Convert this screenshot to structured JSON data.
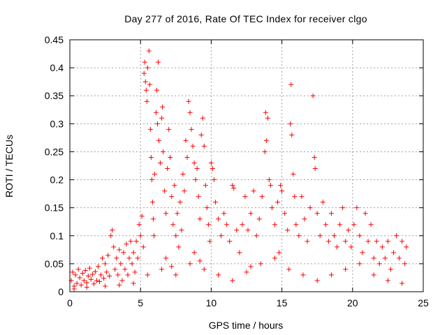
{
  "chart_data": {
    "type": "scatter",
    "title": "Day 277 of 2016, Rate Of TEC Index for receiver clgo",
    "xlabel": "GPS time / hours",
    "ylabel": "ROTI / TECUs",
    "xlim": [
      0,
      25
    ],
    "ylim": [
      0,
      0.45
    ],
    "xticks": [
      0,
      5,
      10,
      15,
      20,
      25
    ],
    "xtick_labels": [
      "0",
      "5",
      "10",
      "15",
      "20",
      "25"
    ],
    "yticks": [
      0,
      0.05,
      0.1,
      0.15,
      0.2,
      0.25,
      0.3,
      0.35,
      0.4,
      0.45
    ],
    "ytick_labels": [
      "0",
      "0.05",
      "0.1",
      "0.15",
      "0.2",
      "0.25",
      "0.3",
      "0.35",
      "0.4",
      "0.45"
    ],
    "grid": true,
    "marker": "+",
    "color": "#ff0000",
    "series": [
      {
        "name": "ROTI",
        "points": [
          [
            0.1,
            0.02
          ],
          [
            0.2,
            0.035
          ],
          [
            0.3,
            0.01
          ],
          [
            0.4,
            0.03
          ],
          [
            0.5,
            0.015
          ],
          [
            0.6,
            0.04
          ],
          [
            0.7,
            0.025
          ],
          [
            0.8,
            0.012
          ],
          [
            0.9,
            0.033
          ],
          [
            1.0,
            0.02
          ],
          [
            1.1,
            0.038
          ],
          [
            1.2,
            0.016
          ],
          [
            1.3,
            0.028
          ],
          [
            1.4,
            0.042
          ],
          [
            1.5,
            0.022
          ],
          [
            1.6,
            0.031
          ],
          [
            1.7,
            0.014
          ],
          [
            1.8,
            0.036
          ],
          [
            1.9,
            0.02
          ],
          [
            2.0,
            0.045
          ],
          [
            2.1,
            0.018
          ],
          [
            2.2,
            0.03
          ],
          [
            2.3,
            0.06
          ],
          [
            2.4,
            0.024
          ],
          [
            2.5,
            0.05
          ],
          [
            2.6,
            0.035
          ],
          [
            2.7,
            0.065
          ],
          [
            2.8,
            0.028
          ],
          [
            2.9,
            0.1
          ],
          [
            3.0,
            0.11
          ],
          [
            3.1,
            0.08
          ],
          [
            3.2,
            0.04
          ],
          [
            3.3,
            0.06
          ],
          [
            3.4,
            0.03
          ],
          [
            3.5,
            0.075
          ],
          [
            3.6,
            0.05
          ],
          [
            3.7,
            0.02
          ],
          [
            3.8,
            0.07
          ],
          [
            3.9,
            0.04
          ],
          [
            4.0,
            0.085
          ],
          [
            4.1,
            0.03
          ],
          [
            4.2,
            0.06
          ],
          [
            4.3,
            0.09
          ],
          [
            4.4,
            0.05
          ],
          [
            4.5,
            0.07
          ],
          [
            4.6,
            0.035
          ],
          [
            4.7,
            0.09
          ],
          [
            4.8,
            0.06
          ],
          [
            4.9,
            0.12
          ],
          [
            5.0,
            0.1
          ],
          [
            5.1,
            0.135
          ],
          [
            5.2,
            0.08
          ],
          [
            5.25,
            0.39
          ],
          [
            5.3,
            0.41
          ],
          [
            5.35,
            0.375
          ],
          [
            5.4,
            0.36
          ],
          [
            5.45,
            0.34
          ],
          [
            5.5,
            0.4
          ],
          [
            5.6,
            0.43
          ],
          [
            5.65,
            0.37
          ],
          [
            5.7,
            0.29
          ],
          [
            5.75,
            0.24
          ],
          [
            5.8,
            0.2
          ],
          [
            5.85,
            0.16
          ],
          [
            5.9,
            0.13
          ],
          [
            5.95,
            0.1
          ],
          [
            6.0,
            0.21
          ],
          [
            6.1,
            0.32
          ],
          [
            6.15,
            0.36
          ],
          [
            6.2,
            0.3
          ],
          [
            6.25,
            0.41
          ],
          [
            6.3,
            0.27
          ],
          [
            6.4,
            0.23
          ],
          [
            6.5,
            0.31
          ],
          [
            6.55,
            0.33
          ],
          [
            6.6,
            0.25
          ],
          [
            6.7,
            0.18
          ],
          [
            6.8,
            0.14
          ],
          [
            6.9,
            0.22
          ],
          [
            7.0,
            0.29
          ],
          [
            7.1,
            0.24
          ],
          [
            7.2,
            0.17
          ],
          [
            7.3,
            0.12
          ],
          [
            7.4,
            0.19
          ],
          [
            7.5,
            0.1
          ],
          [
            7.6,
            0.14
          ],
          [
            7.7,
            0.08
          ],
          [
            7.8,
            0.16
          ],
          [
            7.9,
            0.11
          ],
          [
            8.0,
            0.21
          ],
          [
            8.1,
            0.18
          ],
          [
            8.2,
            0.27
          ],
          [
            8.3,
            0.24
          ],
          [
            8.4,
            0.34
          ],
          [
            8.5,
            0.32
          ],
          [
            8.6,
            0.29
          ],
          [
            8.7,
            0.26
          ],
          [
            8.8,
            0.23
          ],
          [
            8.9,
            0.2
          ],
          [
            9.0,
            0.22
          ],
          [
            9.1,
            0.17
          ],
          [
            9.2,
            0.13
          ],
          [
            9.3,
            0.28
          ],
          [
            9.4,
            0.31
          ],
          [
            9.5,
            0.26
          ],
          [
            9.6,
            0.19
          ],
          [
            9.7,
            0.15
          ],
          [
            9.8,
            0.12
          ],
          [
            9.9,
            0.09
          ],
          [
            10.0,
            0.23
          ],
          [
            10.1,
            0.22
          ],
          [
            10.2,
            0.2
          ],
          [
            10.3,
            0.16
          ],
          [
            10.5,
            0.13
          ],
          [
            10.7,
            0.1
          ],
          [
            10.9,
            0.14
          ],
          [
            11.1,
            0.12
          ],
          [
            11.3,
            0.09
          ],
          [
            11.5,
            0.19
          ],
          [
            11.6,
            0.185
          ],
          [
            11.8,
            0.11
          ],
          [
            12.0,
            0.07
          ],
          [
            12.2,
            0.12
          ],
          [
            12.4,
            0.17
          ],
          [
            12.6,
            0.11
          ],
          [
            12.8,
            0.14
          ],
          [
            13.0,
            0.18
          ],
          [
            13.2,
            0.1
          ],
          [
            13.4,
            0.13
          ],
          [
            13.6,
            0.17
          ],
          [
            13.8,
            0.25
          ],
          [
            13.85,
            0.32
          ],
          [
            13.9,
            0.27
          ],
          [
            14.0,
            0.31
          ],
          [
            14.1,
            0.2
          ],
          [
            14.2,
            0.19
          ],
          [
            14.3,
            0.15
          ],
          [
            14.5,
            0.12
          ],
          [
            14.7,
            0.16
          ],
          [
            14.9,
            0.19
          ],
          [
            15.0,
            0.18
          ],
          [
            15.2,
            0.14
          ],
          [
            15.4,
            0.11
          ],
          [
            15.6,
            0.3
          ],
          [
            15.65,
            0.37
          ],
          [
            15.7,
            0.28
          ],
          [
            15.8,
            0.21
          ],
          [
            15.9,
            0.17
          ],
          [
            16.0,
            0.12
          ],
          [
            16.2,
            0.1
          ],
          [
            16.4,
            0.17
          ],
          [
            16.6,
            0.13
          ],
          [
            16.8,
            0.09
          ],
          [
            17.0,
            0.15
          ],
          [
            17.2,
            0.35
          ],
          [
            17.3,
            0.24
          ],
          [
            17.35,
            0.22
          ],
          [
            17.5,
            0.14
          ],
          [
            17.7,
            0.1
          ],
          [
            17.9,
            0.16
          ],
          [
            18.1,
            0.12
          ],
          [
            18.3,
            0.09
          ],
          [
            18.5,
            0.14
          ],
          [
            18.7,
            0.1
          ],
          [
            18.9,
            0.08
          ],
          [
            19.1,
            0.12
          ],
          [
            19.3,
            0.15
          ],
          [
            19.5,
            0.09
          ],
          [
            19.7,
            0.11
          ],
          [
            19.9,
            0.08
          ],
          [
            20.1,
            0.12
          ],
          [
            20.3,
            0.15
          ],
          [
            20.5,
            0.1
          ],
          [
            20.7,
            0.07
          ],
          [
            20.9,
            0.14
          ],
          [
            21.1,
            0.09
          ],
          [
            21.3,
            0.12
          ],
          [
            21.5,
            0.06
          ],
          [
            21.7,
            0.09
          ],
          [
            21.9,
            0.05
          ],
          [
            22.1,
            0.08
          ],
          [
            22.3,
            0.06
          ],
          [
            22.5,
            0.09
          ],
          [
            22.7,
            0.04
          ],
          [
            22.9,
            0.07
          ],
          [
            23.1,
            0.1
          ],
          [
            23.3,
            0.06
          ],
          [
            23.5,
            0.09
          ],
          [
            23.7,
            0.05
          ],
          [
            23.8,
            0.08
          ],
          [
            0.3,
            0.005
          ],
          [
            1.2,
            0.008
          ],
          [
            2.5,
            0.01
          ],
          [
            3.5,
            0.012
          ],
          [
            4.5,
            0.015
          ],
          [
            5.5,
            0.03
          ],
          [
            6.5,
            0.04
          ],
          [
            7.5,
            0.03
          ],
          [
            8.5,
            0.05
          ],
          [
            9.5,
            0.04
          ],
          [
            10.5,
            0.03
          ],
          [
            11.5,
            0.02
          ],
          [
            12.5,
            0.035
          ],
          [
            13.5,
            0.05
          ],
          [
            14.5,
            0.06
          ],
          [
            15.5,
            0.04
          ],
          [
            16.5,
            0.03
          ],
          [
            17.5,
            0.02
          ],
          [
            18.5,
            0.03
          ],
          [
            19.5,
            0.04
          ],
          [
            20.5,
            0.05
          ],
          [
            21.5,
            0.03
          ],
          [
            22.5,
            0.02
          ],
          [
            23.5,
            0.015
          ],
          [
            6.8,
            0.06
          ],
          [
            7.2,
            0.045
          ],
          [
            8.8,
            0.07
          ],
          [
            9.2,
            0.055
          ],
          [
            12.8,
            0.045
          ],
          [
            14.8,
            0.07
          ]
        ]
      }
    ]
  }
}
